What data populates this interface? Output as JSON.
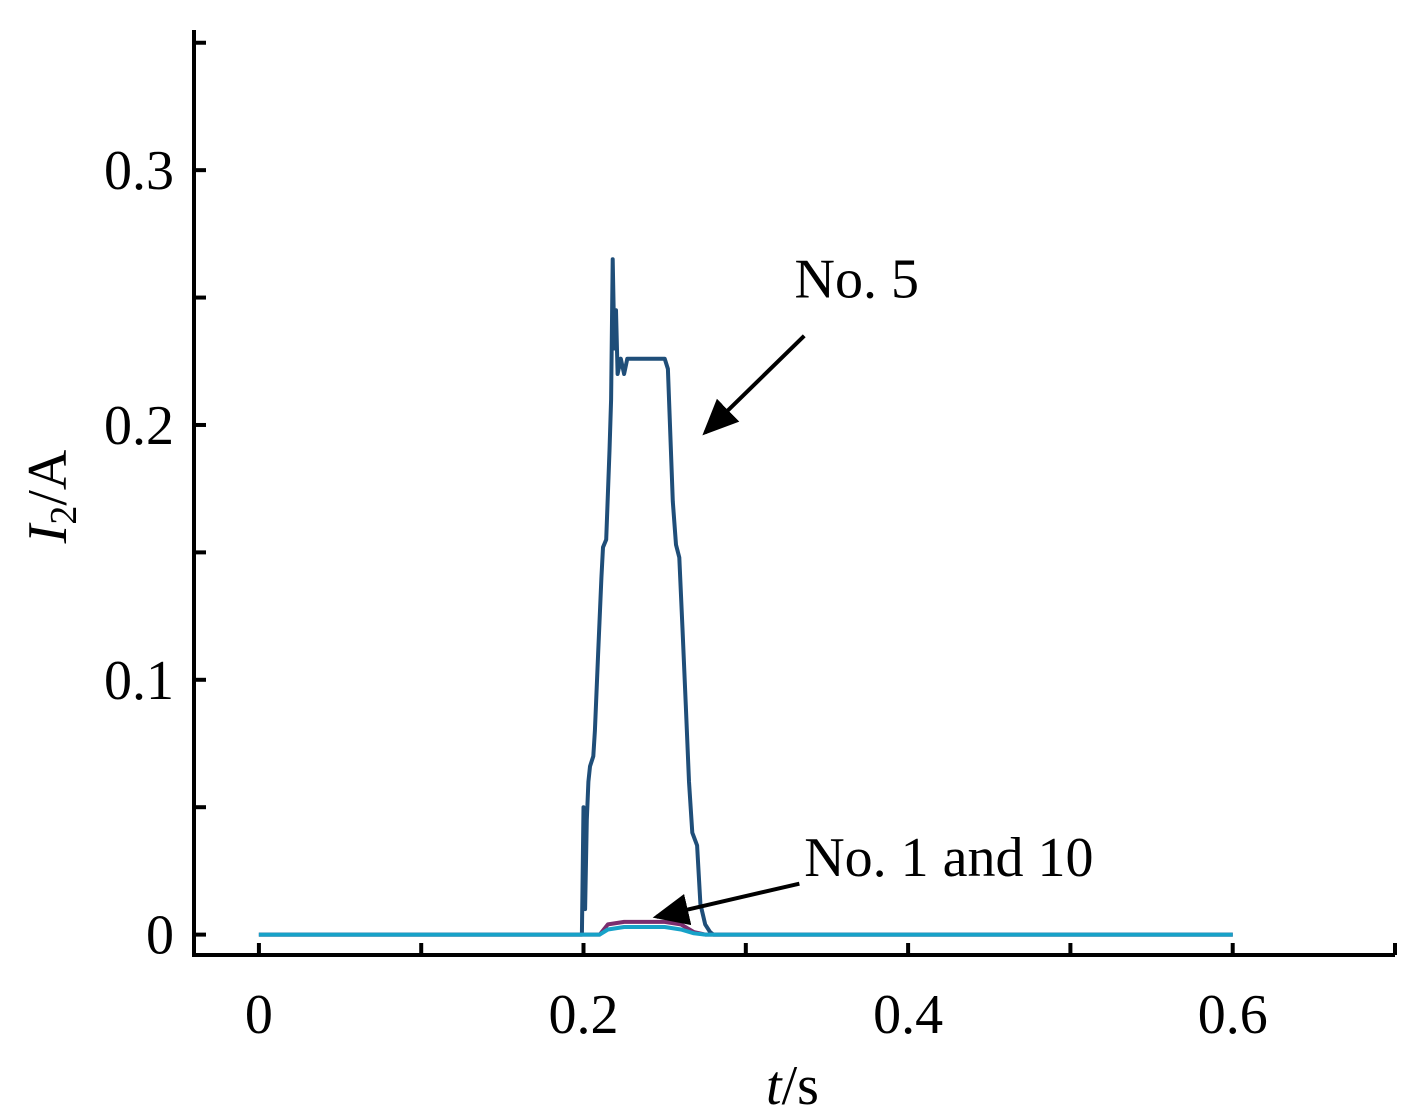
{
  "chart_data": {
    "type": "line",
    "title": "",
    "xlabel": {
      "italic": "t",
      "rest": "/s"
    },
    "ylabel": {
      "italic": "I",
      "sub": "2",
      "rest": "/A"
    },
    "xlim": [
      -0.04,
      0.7
    ],
    "ylim": [
      -0.008,
      0.355
    ],
    "x_ticks": [
      0,
      0.1,
      0.2,
      0.3,
      0.4,
      0.5,
      0.6,
      0.7
    ],
    "x_tick_labels": [
      {
        "value": 0,
        "label": "0"
      },
      {
        "value": 0.2,
        "label": "0.2"
      },
      {
        "value": 0.4,
        "label": "0.4"
      },
      {
        "value": 0.6,
        "label": "0.6"
      }
    ],
    "y_ticks": [
      0,
      0.05,
      0.1,
      0.15,
      0.2,
      0.25,
      0.3,
      0.35
    ],
    "y_tick_labels": [
      {
        "value": 0,
        "label": "0"
      },
      {
        "value": 0.1,
        "label": "0.1"
      },
      {
        "value": 0.2,
        "label": "0.2"
      },
      {
        "value": 0.3,
        "label": "0.3"
      }
    ],
    "grid": false,
    "legend": "none",
    "series": [
      {
        "color": "#1f4e79",
        "points": [
          [
            0,
            0
          ],
          [
            0.199,
            0
          ],
          [
            0.2,
            0.05
          ],
          [
            0.201,
            0.01
          ],
          [
            0.202,
            0.045
          ],
          [
            0.203,
            0.06
          ],
          [
            0.204,
            0.066
          ],
          [
            0.206,
            0.07
          ],
          [
            0.207,
            0.08
          ],
          [
            0.209,
            0.11
          ],
          [
            0.211,
            0.14
          ],
          [
            0.212,
            0.152
          ],
          [
            0.214,
            0.155
          ],
          [
            0.216,
            0.19
          ],
          [
            0.217,
            0.21
          ],
          [
            0.218,
            0.265
          ],
          [
            0.219,
            0.23
          ],
          [
            0.22,
            0.245
          ],
          [
            0.221,
            0.22
          ],
          [
            0.223,
            0.226
          ],
          [
            0.225,
            0.22
          ],
          [
            0.227,
            0.226
          ],
          [
            0.25,
            0.226
          ],
          [
            0.252,
            0.222
          ],
          [
            0.253,
            0.205
          ],
          [
            0.255,
            0.17
          ],
          [
            0.257,
            0.153
          ],
          [
            0.259,
            0.148
          ],
          [
            0.261,
            0.12
          ],
          [
            0.263,
            0.09
          ],
          [
            0.265,
            0.06
          ],
          [
            0.267,
            0.04
          ],
          [
            0.27,
            0.035
          ],
          [
            0.272,
            0.012
          ],
          [
            0.275,
            0.004
          ],
          [
            0.278,
            0.001
          ],
          [
            0.28,
            0
          ],
          [
            0.6,
            0
          ]
        ]
      },
      {
        "color": "#7b2d6e",
        "points": [
          [
            0,
            0
          ],
          [
            0.21,
            0
          ],
          [
            0.215,
            0.004
          ],
          [
            0.225,
            0.005
          ],
          [
            0.25,
            0.005
          ],
          [
            0.26,
            0.004
          ],
          [
            0.268,
            0.001
          ],
          [
            0.275,
            0
          ],
          [
            0.6,
            0
          ]
        ]
      },
      {
        "color": "#17a2c8",
        "points": [
          [
            0,
            0
          ],
          [
            0.21,
            0
          ],
          [
            0.215,
            0.002
          ],
          [
            0.225,
            0.003
          ],
          [
            0.25,
            0.003
          ],
          [
            0.26,
            0.002
          ],
          [
            0.268,
            0.0005
          ],
          [
            0.275,
            0
          ],
          [
            0.6,
            0
          ]
        ]
      }
    ],
    "annotations": [
      {
        "text": "No. 5",
        "text_at": [
          0.33,
          0.25
        ],
        "arrow_from": [
          0.336,
          0.235
        ],
        "arrow_to": [
          0.275,
          0.197
        ]
      },
      {
        "text": "No. 1 and 10",
        "text_at": [
          0.336,
          0.023
        ],
        "arrow_from": [
          0.333,
          0.02
        ],
        "arrow_to": [
          0.245,
          0.007
        ]
      }
    ]
  }
}
